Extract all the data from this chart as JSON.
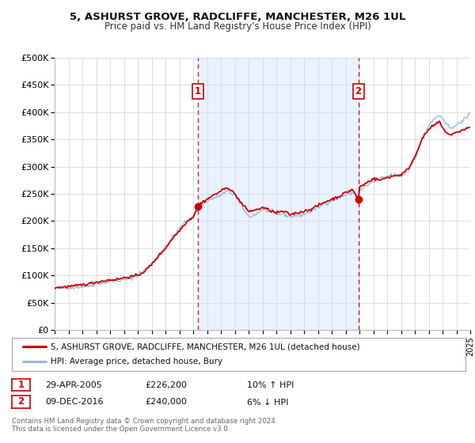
{
  "title": "5, ASHURST GROVE, RADCLIFFE, MANCHESTER, M26 1UL",
  "subtitle": "Price paid vs. HM Land Registry's House Price Index (HPI)",
  "bg_color": "#ffffff",
  "plot_bg_color": "#ffffff",
  "grid_color": "#dddddd",
  "hpi_color": "#99bbdd",
  "price_color": "#cc0000",
  "marker1_date_x": 2005.33,
  "marker2_date_x": 2016.92,
  "marker1_price": 226200,
  "marker2_price": 240000,
  "legend_line1": "5, ASHURST GROVE, RADCLIFFE, MANCHESTER, M26 1UL (detached house)",
  "legend_line2": "HPI: Average price, detached house, Bury",
  "table_row1_date": "29-APR-2005",
  "table_row1_price": "£226,200",
  "table_row1_hpi": "10% ↑ HPI",
  "table_row2_date": "09-DEC-2016",
  "table_row2_price": "£240,000",
  "table_row2_hpi": "6% ↓ HPI",
  "footnote": "Contains HM Land Registry data © Crown copyright and database right 2024.\nThis data is licensed under the Open Government Licence v3.0.",
  "xmin": 1995,
  "xmax": 2025,
  "ymin": 0,
  "ymax": 500000,
  "yticks": [
    0,
    50000,
    100000,
    150000,
    200000,
    250000,
    300000,
    350000,
    400000,
    450000,
    500000
  ],
  "ytick_labels": [
    "£0",
    "£50K",
    "£100K",
    "£150K",
    "£200K",
    "£250K",
    "£300K",
    "£350K",
    "£400K",
    "£450K",
    "£500K"
  ],
  "xticks": [
    1995,
    1996,
    1997,
    1998,
    1999,
    2000,
    2001,
    2002,
    2003,
    2004,
    2005,
    2006,
    2007,
    2008,
    2009,
    2010,
    2011,
    2012,
    2013,
    2014,
    2015,
    2016,
    2017,
    2018,
    2019,
    2020,
    2021,
    2022,
    2023,
    2024,
    2025
  ]
}
